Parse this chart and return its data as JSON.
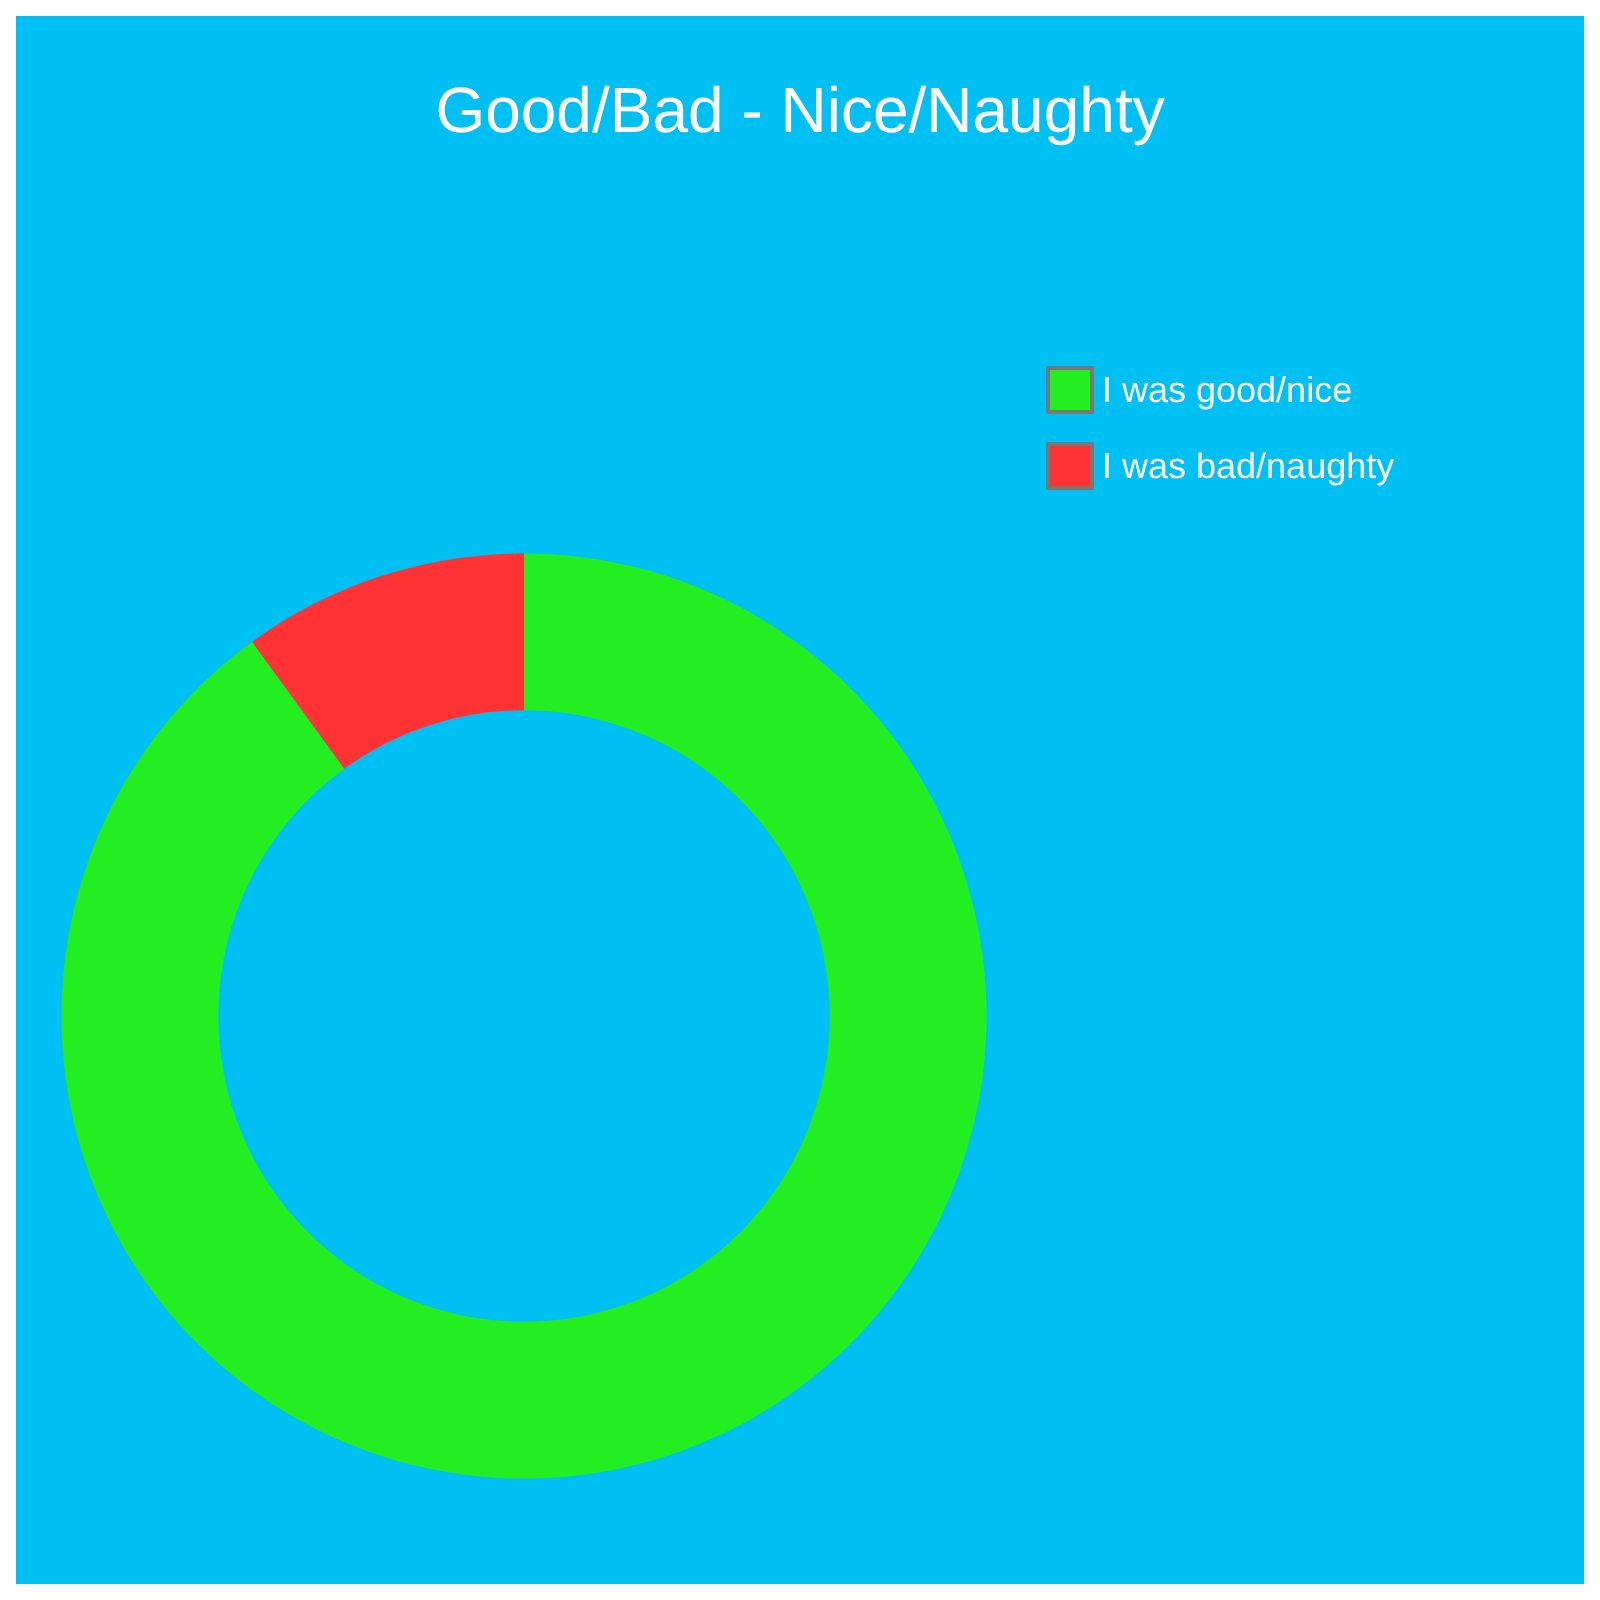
{
  "chart_data": {
    "type": "donut",
    "title": "Good/Bad - Nice/Naughty",
    "categories": [
      "I was good/nice",
      "I was bad/naughty"
    ],
    "values": [
      90,
      10
    ],
    "colors": [
      "#22ee22",
      "#ff3333"
    ],
    "legend": "top right"
  }
}
